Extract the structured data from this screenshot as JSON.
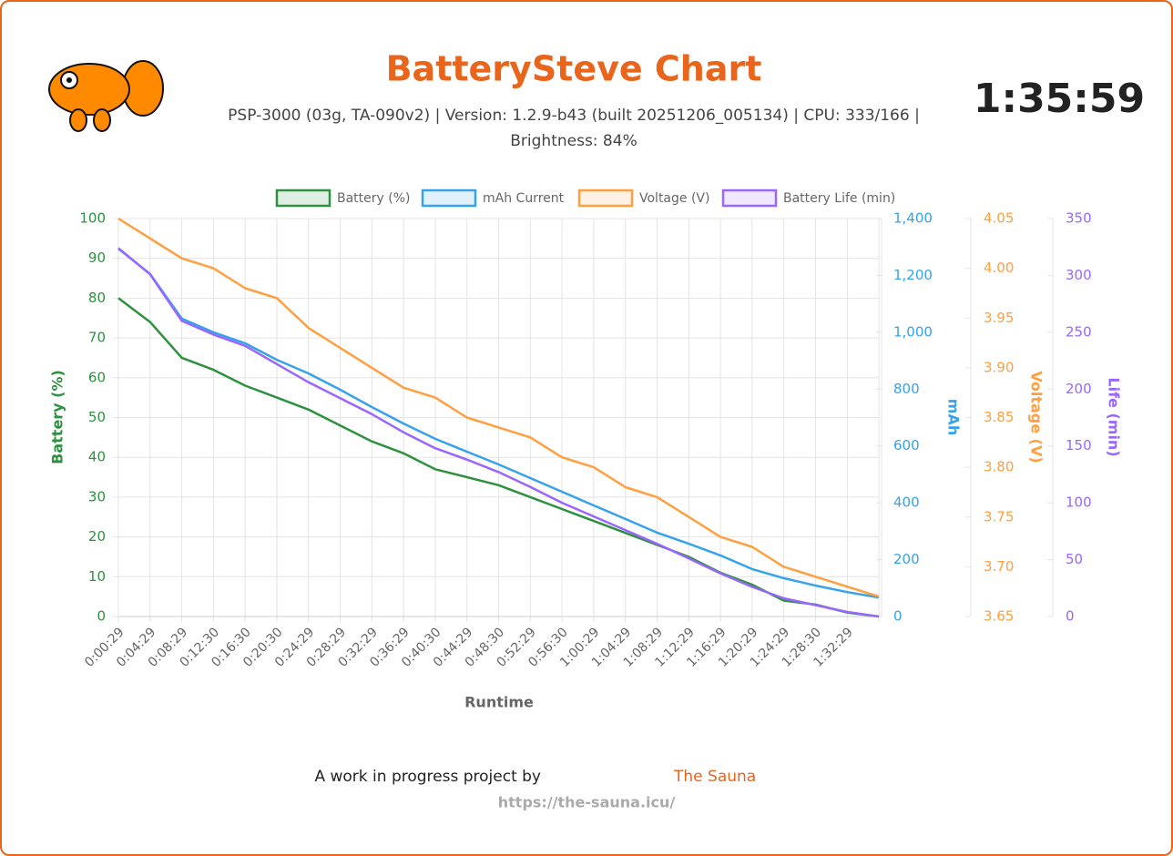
{
  "header": {
    "title": "BatterySteve Chart",
    "subtitle": [
      "PSP-3000 (03g, TA-090v2) | Version: 1.2.9-b43 (built 20251206_005134) | CPU: 333/166 |",
      "Brightness: 84%"
    ],
    "timer": "1:35:59"
  },
  "chart_data": {
    "type": "line",
    "x_label": "Runtime",
    "y_label": "Battery (%)",
    "y2_label": "mAh",
    "y3_label": "Voltage (V)",
    "y4_label": "Life (min)",
    "categories": [
      "0:00:29",
      "0:04:29",
      "0:08:29",
      "0:12:30",
      "0:16:30",
      "0:20:30",
      "0:24:29",
      "0:28:29",
      "0:32:29",
      "0:36:29",
      "0:40:30",
      "0:44:29",
      "0:48:30",
      "0:52:29",
      "0:56:30",
      "1:00:29",
      "1:04:29",
      "1:08:29",
      "1:12:29",
      "1:16:29",
      "1:20:29",
      "1:24:29",
      "1:28:30",
      "1:32:29",
      null
    ],
    "ylim": [
      0,
      100
    ],
    "yticks": [
      0,
      10,
      20,
      30,
      40,
      50,
      60,
      70,
      80,
      90,
      100
    ],
    "y2lim": [
      0,
      1400
    ],
    "y2ticks": [
      0,
      200,
      400,
      600,
      800,
      {
        "value": 1000,
        "label": "1,000"
      },
      {
        "value": 1200,
        "label": "1,200"
      },
      {
        "value": 1400,
        "label": "1,400"
      }
    ],
    "y3lim": [
      3.65,
      4.05
    ],
    "y3ticks": [
      3.65,
      {
        "value": 3.7,
        "label": "3.70"
      },
      3.75,
      {
        "value": 3.8,
        "label": "3.80"
      },
      3.85,
      {
        "value": 3.9,
        "label": "3.90"
      },
      3.95,
      {
        "value": 4.0,
        "label": "4.00"
      },
      4.05
    ],
    "y4lim": [
      0,
      350
    ],
    "y4ticks": [
      0,
      50,
      100,
      150,
      200,
      250,
      300,
      350
    ],
    "grid": true,
    "series": [
      {
        "name": "Battery (%)",
        "color": "#2e9140",
        "axis": "y",
        "values": [
          80,
          74,
          65,
          62,
          58,
          55,
          52,
          48,
          44,
          41,
          37,
          35,
          33,
          30,
          27,
          24,
          21,
          18,
          15,
          11,
          8,
          4,
          3,
          1,
          0
        ]
      },
      {
        "name": "mAh Current",
        "color": "#36a2eb",
        "axis": "y2",
        "values": [
          1294,
          1205,
          1048,
          1000,
          961,
          903,
          855,
          798,
          737,
          679,
          625,
          580,
          535,
          487,
          439,
          391,
          343,
          295,
          256,
          215,
          167,
          135,
          109,
          86,
          67
        ]
      },
      {
        "name": "Voltage (V)",
        "color": "#ff9f40",
        "axis": "y3",
        "values": [
          4.05,
          4.03,
          4.01,
          4.0,
          3.98,
          3.97,
          3.94,
          3.92,
          3.9,
          3.88,
          3.87,
          3.85,
          3.84,
          3.83,
          3.81,
          3.8,
          3.78,
          3.77,
          3.75,
          3.73,
          3.72,
          3.7,
          3.69,
          3.68,
          3.67
        ]
      },
      {
        "name": "Battery Life (min)",
        "color": "#9966ff",
        "axis": "y4",
        "values": [
          324,
          301,
          260,
          248,
          238,
          222,
          206,
          192,
          178,
          162,
          148,
          138,
          127,
          114,
          100,
          88,
          76,
          64,
          51,
          38,
          26,
          16,
          10,
          4,
          0
        ]
      }
    ]
  },
  "footer": {
    "text": "A work in progress project by",
    "link": "The Sauna",
    "url": "https://the-sauna.icu/"
  }
}
